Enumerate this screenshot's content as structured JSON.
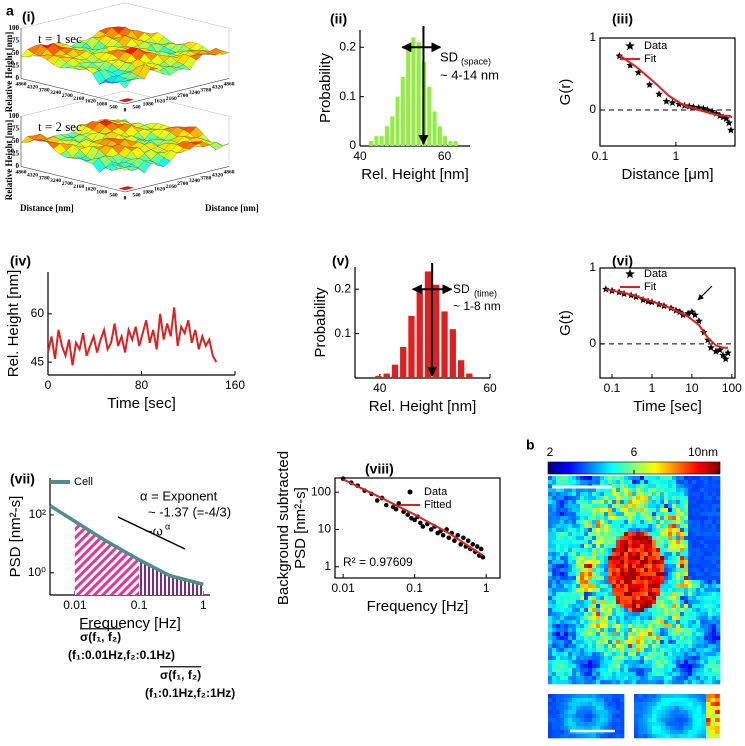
{
  "figure_labels": [
    "a",
    "b"
  ],
  "chart_data": [
    {
      "type": "surface3d",
      "panel_label": "(i)",
      "subplots": [
        {
          "title": "t = 1 sec"
        },
        {
          "title": "t = 2 sec"
        }
      ],
      "zlabel": "Relative Height [nm]",
      "xlabel": "Distance [nm]",
      "ylabel": "Distance [nm]",
      "zlim": [
        0,
        100
      ],
      "zticks": [
        0,
        25,
        50,
        75,
        100
      ],
      "xlim": [
        0,
        4860
      ],
      "xticks": [
        0,
        540,
        1080,
        1620,
        2160,
        2700,
        3240,
        3780,
        4320,
        4860
      ],
      "ylim": [
        0,
        4860
      ],
      "yticks": [
        0,
        540,
        1080,
        1620,
        2160,
        2700,
        3240,
        3780,
        4320,
        4860
      ]
    },
    {
      "type": "histogram",
      "panel_label": "(ii)",
      "xlabel": "Rel. Height [nm]",
      "ylabel": "Probability",
      "color": "#8ef03c",
      "bins": [
        42,
        43.25,
        44.5,
        45.75,
        47,
        48.25,
        49.5,
        50.75,
        52,
        53.25,
        54.5,
        55.75,
        57,
        58.25,
        59.5,
        60.75,
        62,
        63.25
      ],
      "counts": [
        0.01,
        0.02,
        0.02,
        0.04,
        0.06,
        0.1,
        0.14,
        0.2,
        0.22,
        0.21,
        0.17,
        0.12,
        0.07,
        0.04,
        0.02,
        0.01,
        0.01
      ],
      "xlim": [
        40,
        66
      ],
      "xticks": [
        40,
        60
      ],
      "ylim": [
        0,
        0.235
      ],
      "yticks": [
        0,
        0.1,
        0.2
      ],
      "arrow_x": 55,
      "sd_span": [
        50,
        59
      ],
      "annotations": [
        "SD",
        "(space)",
        "~ 4-14 nm"
      ]
    },
    {
      "type": "scatter",
      "panel_label": "(iii)",
      "xlabel": "Distance [μm]",
      "ylabel": "G(r)",
      "xlog": true,
      "xlim": [
        0.1,
        6
      ],
      "xticks": [
        0.1,
        1
      ],
      "ylim": [
        -0.5,
        1
      ],
      "yticks": [
        0,
        1
      ],
      "reference_line": 0,
      "series": [
        {
          "name": "Data",
          "color": "#000000",
          "mode": "markers",
          "marker": "star",
          "x": [
            0.18,
            0.25,
            0.32,
            0.45,
            0.6,
            0.75,
            0.9,
            1.1,
            1.3,
            1.5,
            1.7,
            2.0,
            2.3,
            2.6,
            3.0,
            3.4,
            3.8,
            4.2,
            4.6,
            5.0,
            5.3
          ],
          "values": [
            0.75,
            0.62,
            0.52,
            0.35,
            0.22,
            0.12,
            0.1,
            0.08,
            0.06,
            0.05,
            0.04,
            0.03,
            0.02,
            0.0,
            -0.02,
            -0.05,
            -0.08,
            -0.1,
            -0.12,
            -0.18,
            -0.28
          ]
        },
        {
          "name": "Fit",
          "color": "#e02020",
          "mode": "line",
          "x": [
            0.18,
            0.3,
            0.5,
            0.8,
            1.2,
            2,
            3,
            4,
            5,
            5.5
          ],
          "values": [
            0.76,
            0.6,
            0.4,
            0.2,
            0.08,
            0.0,
            -0.05,
            -0.08,
            -0.08,
            -0.1
          ]
        }
      ]
    },
    {
      "type": "line",
      "panel_label": "(iv)",
      "xlabel": "Time [sec]",
      "ylabel": "Rel. Height [nm]",
      "xlim": [
        0,
        160
      ],
      "xticks": [
        0,
        80,
        160
      ],
      "ylim": [
        41,
        73
      ],
      "yticks": [
        45,
        60
      ],
      "series": [
        {
          "name": null,
          "color": "#e02020",
          "mode": "line",
          "x": [
            0,
            3,
            6,
            9,
            12,
            15,
            18,
            21,
            24,
            27,
            30,
            33,
            36,
            39,
            42,
            45,
            48,
            51,
            54,
            57,
            60,
            63,
            66,
            69,
            72,
            75,
            78,
            81,
            84,
            87,
            90,
            93,
            96,
            99,
            102,
            105,
            108,
            111,
            114,
            117,
            120,
            123,
            126,
            129,
            132,
            135,
            138,
            141,
            144
          ],
          "values": [
            48,
            53,
            46,
            55,
            50,
            47,
            52,
            44,
            51,
            49,
            54,
            47,
            50,
            53,
            48,
            52,
            55,
            49,
            51,
            57,
            50,
            53,
            48,
            55,
            52,
            56,
            50,
            54,
            58,
            51,
            55,
            49,
            60,
            52,
            57,
            53,
            62,
            50,
            56,
            54,
            58,
            51,
            55,
            49,
            53,
            50,
            52,
            47,
            45
          ]
        }
      ]
    },
    {
      "type": "histogram",
      "panel_label": "(v)",
      "xlabel": "Rel. Height [nm]",
      "ylabel": "Probability",
      "color": "#e02020",
      "bins": [
        39,
        40.5,
        42,
        43.5,
        45,
        46.5,
        48,
        49.5,
        51,
        52.5,
        54,
        55.5,
        57
      ],
      "counts": [
        0.005,
        0.01,
        0.03,
        0.07,
        0.14,
        0.2,
        0.24,
        0.21,
        0.15,
        0.11,
        0.04,
        0.01
      ],
      "xlim": [
        35.5,
        60
      ],
      "xticks": [
        40,
        60
      ],
      "ylim": [
        0,
        0.25
      ],
      "yticks": [
        0.1,
        0.2
      ],
      "arrow_x": 49.5,
      "sd_span": [
        46,
        53
      ],
      "annotations": [
        "SD",
        "(time)",
        "~ 1-8 nm"
      ]
    },
    {
      "type": "scatter",
      "panel_label": "(vi)",
      "xlabel": "Time [sec]",
      "ylabel": "G(t)",
      "xlog": true,
      "xlim": [
        0.05,
        120
      ],
      "xticks": [
        0.1,
        1,
        10,
        100
      ],
      "ylim": [
        -0.45,
        1
      ],
      "yticks": [
        0,
        1
      ],
      "reference_line": 0,
      "series": [
        {
          "name": "Data",
          "color": "#000000",
          "mode": "markers",
          "marker": "star",
          "x": [
            0.07,
            0.1,
            0.15,
            0.2,
            0.3,
            0.4,
            0.6,
            0.8,
            1,
            1.5,
            2,
            3,
            4,
            5,
            6,
            8,
            10,
            12,
            15,
            20,
            25,
            30,
            40,
            50,
            60,
            70,
            80
          ],
          "values": [
            0.72,
            0.7,
            0.68,
            0.66,
            0.64,
            0.62,
            0.58,
            0.56,
            0.55,
            0.52,
            0.5,
            0.47,
            0.44,
            0.42,
            0.38,
            0.4,
            0.42,
            0.38,
            0.3,
            0.15,
            0.05,
            -0.05,
            -0.1,
            -0.08,
            -0.15,
            -0.2,
            -0.12
          ]
        },
        {
          "name": "Fit",
          "color": "#e02020",
          "mode": "line",
          "x": [
            0.07,
            0.3,
            1,
            3,
            8,
            15,
            25,
            40,
            60,
            80
          ],
          "values": [
            0.72,
            0.65,
            0.56,
            0.47,
            0.36,
            0.25,
            0.08,
            -0.02,
            -0.05,
            -0.05
          ]
        }
      ]
    },
    {
      "type": "line",
      "panel_label": "(vii)",
      "xlabel": "Frequency [Hz]",
      "ylabel": "PSD [nm²-s]",
      "xlog": true,
      "ylog": true,
      "xlim": [
        0.0041,
        1.27
      ],
      "xticks": [
        0.01,
        0.1,
        1
      ],
      "ylim": [
        0.17,
        1900
      ],
      "yticks": [
        {
          "value": 1,
          "label": "10⁰"
        },
        {
          "value": 100,
          "label": "10²"
        }
      ],
      "series": [
        {
          "name": "Cell",
          "color": "#4f8f8a",
          "mode": "line",
          "x": [
            0.0041,
            0.01,
            0.03,
            0.1,
            0.3,
            1
          ],
          "values": [
            210,
            60,
            13,
            2.8,
            0.8,
            0.4
          ]
        }
      ],
      "bands": [
        {
          "from": 0.01,
          "to": 0.1,
          "color": "#e8319b",
          "sigma": "σ(f₁, f₂)",
          "label": "(f₁:0.01Hz,f₂:0.1Hz)"
        },
        {
          "from": 0.1,
          "to": 1,
          "color": "#7a2a8c",
          "sigma": "σ(f₁, f₂)",
          "label": "(f₁:0.1Hz,f₂:1Hz)"
        }
      ],
      "annotations": [
        "α = Exponent",
        "~ -1.37 (=-4/3)",
        "~ω",
        "α"
      ]
    },
    {
      "type": "scatter",
      "panel_label": "(viii)",
      "xlabel": "Frequency [Hz]",
      "ylabel": [
        "Background subtracted",
        "PSD [nm²-s]"
      ],
      "xlog": true,
      "ylog": true,
      "xlim": [
        0.0077,
        1.56
      ],
      "xticks": [
        0.01,
        0.1,
        1
      ],
      "ylim": [
        0.5,
        240
      ],
      "yticks": [
        1,
        10,
        100
      ],
      "series": [
        {
          "name": "Data",
          "color": "#000000",
          "mode": "markers",
          "marker": "circle",
          "x": [
            0.01,
            0.013,
            0.016,
            0.02,
            0.025,
            0.03,
            0.035,
            0.04,
            0.05,
            0.055,
            0.06,
            0.07,
            0.08,
            0.09,
            0.1,
            0.11,
            0.12,
            0.13,
            0.15,
            0.17,
            0.19,
            0.21,
            0.23,
            0.25,
            0.28,
            0.3,
            0.33,
            0.36,
            0.4,
            0.44,
            0.48,
            0.52,
            0.56,
            0.6,
            0.65,
            0.7,
            0.75,
            0.8,
            0.85,
            0.9
          ],
          "values": [
            230,
            180,
            150,
            110,
            90,
            60,
            70,
            45,
            40,
            35,
            50,
            30,
            25,
            20,
            18,
            22,
            15,
            12,
            14,
            10,
            12,
            8,
            9,
            7,
            10,
            6,
            8,
            5,
            7,
            4,
            6,
            3.5,
            5,
            3,
            4,
            2.5,
            3.5,
            2,
            3,
            1.8
          ]
        },
        {
          "name": "Fitted",
          "color": "#e02020",
          "mode": "line",
          "x": [
            0.01,
            0.03,
            0.1,
            0.3,
            0.9
          ],
          "values": [
            220,
            80,
            25,
            8,
            2
          ]
        }
      ],
      "annotations": [
        "R² = 0.97609"
      ]
    },
    {
      "type": "heatmap",
      "clim": [
        2,
        10
      ],
      "colorbar_ticks": [
        2,
        6,
        {
          "value": 10,
          "label": "10nm"
        }
      ]
    }
  ]
}
